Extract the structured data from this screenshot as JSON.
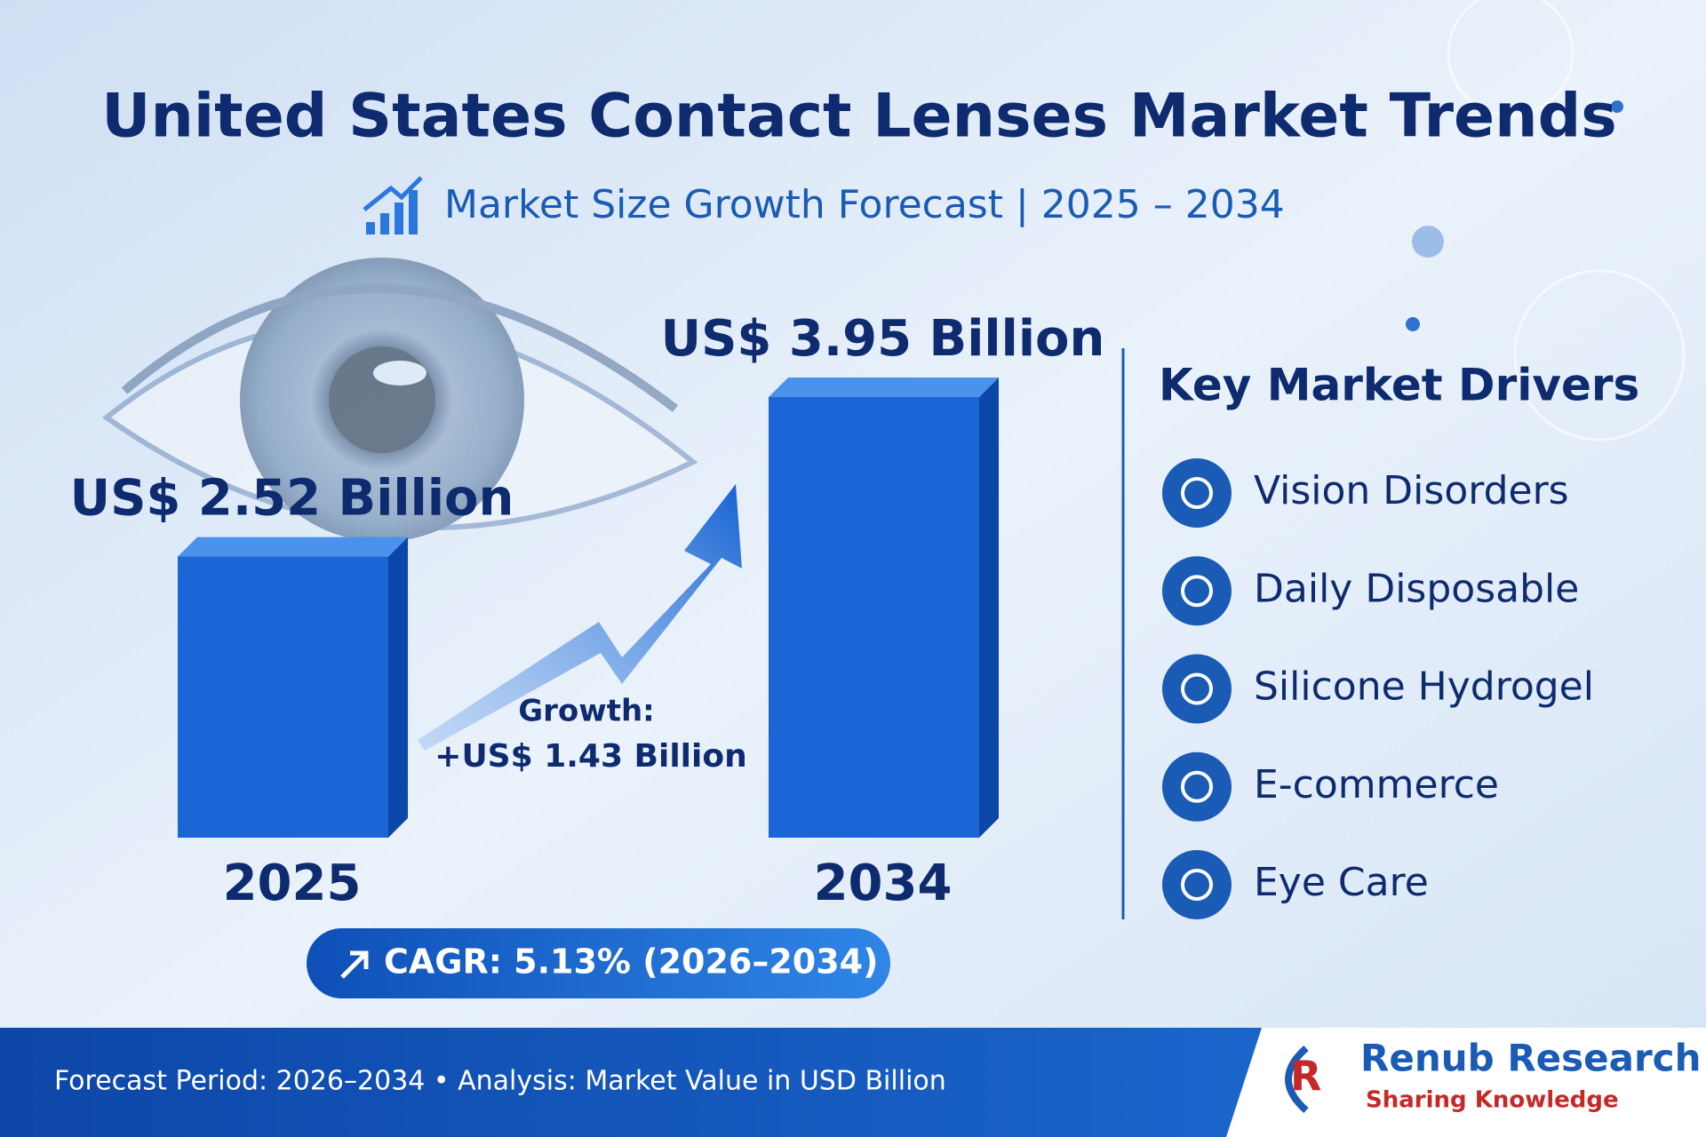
{
  "chart_data": {
    "type": "bar",
    "title": "United States Contact Lenses Market Trends",
    "subtitle": "Market Size Growth Forecast | 2025 – 2034",
    "categories": [
      "2025",
      "2034"
    ],
    "values": [
      2.52,
      3.95
    ],
    "value_labels": [
      "US$ 2.52 Billion",
      "US$ 3.95 Billion"
    ],
    "color": "#1a66d6",
    "growth_label": "Growth:",
    "growth_value": "+US$ 1.43 Billion",
    "cagr": "CAGR: 5.13% (2026–2034)"
  },
  "drivers": {
    "title": "Key Market Drivers",
    "items": [
      "Vision Disorders",
      "Daily Disposable",
      "Silicone Hydrogel",
      "E-commerce",
      "Eye Care"
    ]
  },
  "footer": {
    "text": "Forecast Period: 2026–2034 • Analysis: Market Value in USD Billion",
    "brand": "Renub Research",
    "tagline": "Sharing Knowledge"
  }
}
